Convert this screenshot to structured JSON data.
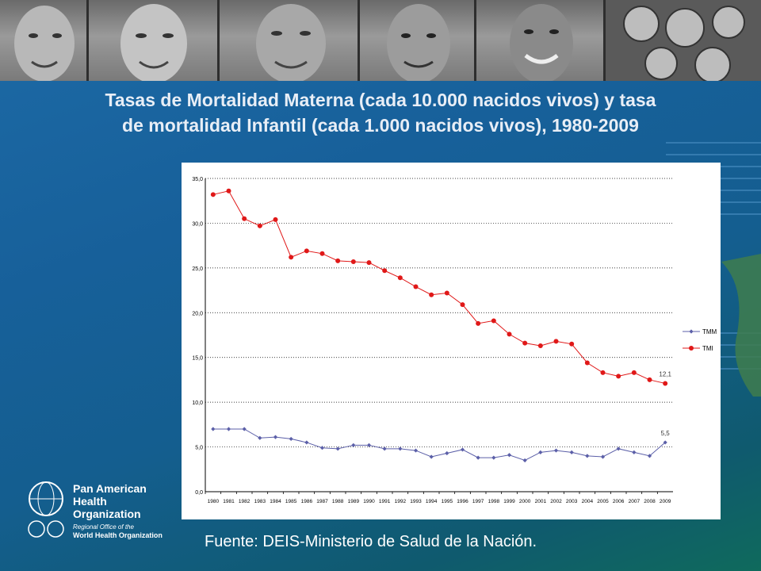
{
  "title_line1": "Tasas de Mortalidad Materna (cada 10.000 nacidos vivos) y tasa",
  "title_line2": "de mortalidad Infantil (cada 1.000 nacidos vivos), 1980-2009",
  "source": "Fuente: DEIS-Ministerio de Salud de la Nación.",
  "logo": {
    "line1": "Pan American",
    "line2": "Health",
    "line3": "Organization",
    "sub1": "Regional Office of the",
    "sub2": "World Health Organization"
  },
  "colors": {
    "tmm": "#5b5fa8",
    "tmi": "#e01818",
    "grid": "#000000"
  },
  "chart_data": {
    "type": "line",
    "title": "",
    "xlabel": "",
    "ylabel": "",
    "ylim": [
      0,
      35
    ],
    "y_ticks": [
      "0,0",
      "5,0",
      "10,0",
      "15,0",
      "20,0",
      "25,0",
      "30,0",
      "35,0"
    ],
    "categories": [
      "1980",
      "1981",
      "1982",
      "1983",
      "1984",
      "1985",
      "1986",
      "1987",
      "1988",
      "1989",
      "1990",
      "1991",
      "1992",
      "1993",
      "1994",
      "1995",
      "1996",
      "1997",
      "1998",
      "1999",
      "2000",
      "2001",
      "2002",
      "2003",
      "2004",
      "2005",
      "2006",
      "2007",
      "2008",
      "2009"
    ],
    "grid": "horizontal dotted",
    "legend_position": "right",
    "series": [
      {
        "name": "TMM",
        "marker": "diamond",
        "values": [
          7.0,
          7.0,
          7.0,
          6.0,
          6.1,
          5.9,
          5.5,
          4.9,
          4.8,
          5.2,
          5.2,
          4.8,
          4.8,
          4.6,
          3.9,
          4.3,
          4.7,
          3.8,
          3.8,
          4.1,
          3.5,
          4.4,
          4.6,
          4.4,
          4.0,
          3.9,
          4.8,
          4.4,
          4.0,
          5.5
        ],
        "end_label": "5,5"
      },
      {
        "name": "TMI",
        "marker": "circle",
        "values": [
          33.2,
          33.6,
          30.5,
          29.7,
          30.4,
          26.2,
          26.9,
          26.6,
          25.8,
          25.7,
          25.6,
          24.7,
          23.9,
          22.9,
          22.0,
          22.2,
          20.9,
          18.8,
          19.1,
          17.6,
          16.6,
          16.3,
          16.8,
          16.5,
          14.4,
          13.3,
          12.9,
          13.3,
          12.5,
          12.1
        ],
        "end_label": "12,1"
      }
    ]
  }
}
